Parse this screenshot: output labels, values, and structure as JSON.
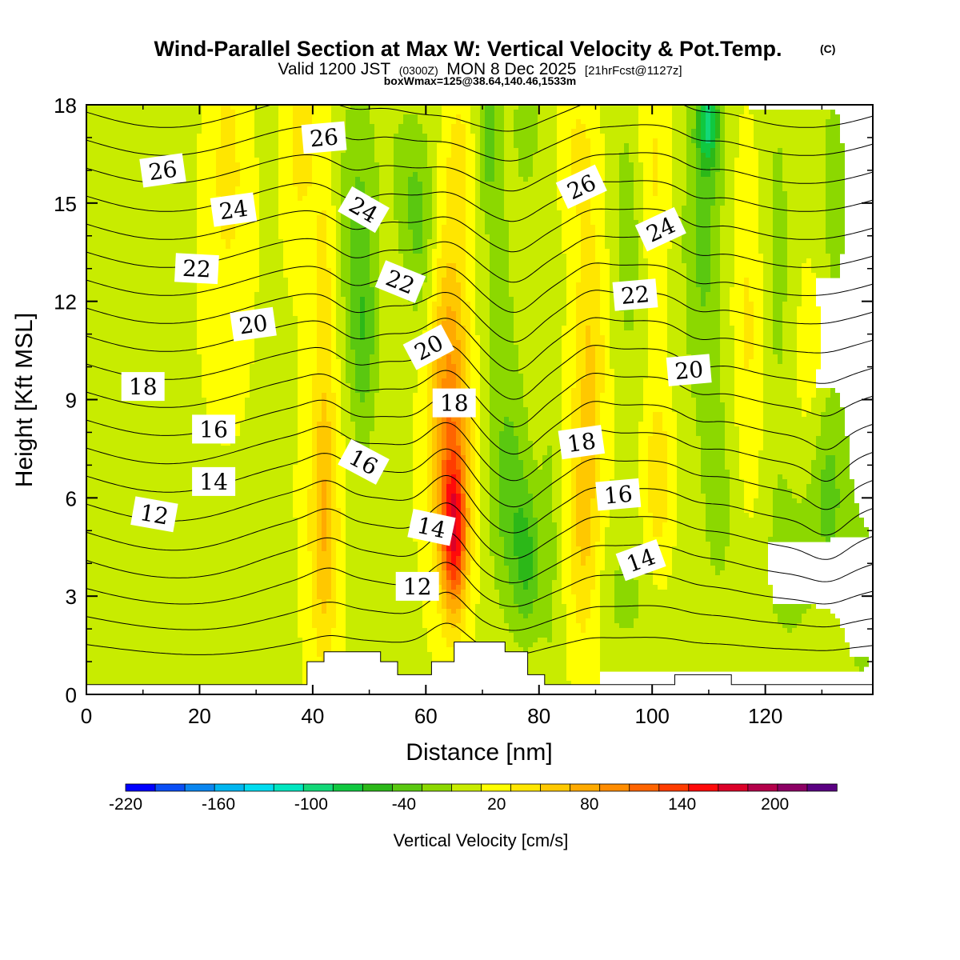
{
  "chart_data": {
    "type": "heatmap",
    "title": "Wind-Parallel Section at Max W: Vertical Velocity & Pot.Temp.",
    "title_mark": "(C)",
    "subtitle": {
      "valid": "Valid 1200 JST",
      "utc": "(0300Z)",
      "date": "MON 8 Dec 2025",
      "forecast": "[21hrFcst@1127z]"
    },
    "info_line": "boxWmax=125@38.64,140.46,1533m",
    "xlabel": "Distance [nm]",
    "ylabel": "Height [Kft MSL]",
    "xlim": [
      0,
      139
    ],
    "ylim": [
      0,
      18
    ],
    "xticks": [
      "0",
      "20",
      "40",
      "60",
      "80",
      "100",
      "120"
    ],
    "yticks": [
      "0",
      "3",
      "6",
      "9",
      "12",
      "15",
      "18"
    ],
    "colorbar": {
      "label": "Vertical Velocity [cm/s]",
      "levels": [
        -220,
        -200,
        -180,
        -160,
        -140,
        -120,
        -100,
        -80,
        -60,
        -40,
        -20,
        0,
        20,
        40,
        60,
        80,
        100,
        120,
        140,
        160,
        180,
        200,
        220,
        240
      ],
      "tick_labels": [
        "-220",
        "-160",
        "-100",
        "-40",
        "20",
        "80",
        "140",
        "200"
      ],
      "colors": [
        "#0000ff",
        "#0a4ef5",
        "#0a86f0",
        "#00b6f0",
        "#00dcf0",
        "#00e6c0",
        "#12d878",
        "#10c840",
        "#2cb818",
        "#5ac810",
        "#8cd800",
        "#c8ec00",
        "#ffff00",
        "#ffe600",
        "#ffc800",
        "#ffaa00",
        "#ff8c00",
        "#ff6400",
        "#ff3c00",
        "#ff0a0a",
        "#dc0028",
        "#b4004a",
        "#8c0064",
        "#5a0082"
      ]
    },
    "w_features": [
      {
        "x": 0,
        "z": 9,
        "rx": 200,
        "rz": 30,
        "w": 20
      },
      {
        "x": 38,
        "z": 17.5,
        "rx": 2.5,
        "rz": 3,
        "w": 40
      },
      {
        "x": 42,
        "z": 5,
        "rx": 2.5,
        "rz": 4,
        "w": 60
      },
      {
        "x": 42,
        "z": 12,
        "rx": 2,
        "rz": 5,
        "w": 30
      },
      {
        "x": 25,
        "z": 16,
        "rx": 3,
        "rz": 4,
        "w": 30
      },
      {
        "x": 48,
        "z": 14.5,
        "rx": 3.5,
        "rz": 4.5,
        "w": -40
      },
      {
        "x": 49,
        "z": 10.5,
        "rx": 2.5,
        "rz": 3,
        "w": -40
      },
      {
        "x": 50,
        "z": 4,
        "rx": 3,
        "rz": 3,
        "w": -10
      },
      {
        "x": 56,
        "z": 16,
        "rx": 3.5,
        "rz": 2.5,
        "w": -20
      },
      {
        "x": 59,
        "z": 14,
        "rx": 3,
        "rz": 3,
        "w": -40
      },
      {
        "x": 65,
        "z": 4.8,
        "rx": 2.2,
        "rz": 2.3,
        "w": 120
      },
      {
        "x": 64.5,
        "z": 7,
        "rx": 3.5,
        "rz": 4,
        "w": 70
      },
      {
        "x": 64,
        "z": 11,
        "rx": 3.5,
        "rz": 4,
        "w": 50
      },
      {
        "x": 66,
        "z": 16.5,
        "rx": 2.5,
        "rz": 2,
        "w": 30
      },
      {
        "x": 75,
        "z": 6,
        "rx": 3.5,
        "rz": 3.5,
        "w": -40
      },
      {
        "x": 78,
        "z": 4,
        "rx": 2.5,
        "rz": 2.2,
        "w": -50
      },
      {
        "x": 73,
        "z": 12,
        "rx": 4,
        "rz": 7,
        "w": -20
      },
      {
        "x": 71,
        "z": 17,
        "rx": 2,
        "rz": 2,
        "w": -40
      },
      {
        "x": 78,
        "z": 17.5,
        "rx": 2,
        "rz": 2,
        "w": -30
      },
      {
        "x": 82,
        "z": 5,
        "rx": 2,
        "rz": 6,
        "w": -20
      },
      {
        "x": 88,
        "z": 5,
        "rx": 3,
        "rz": 4,
        "w": 50
      },
      {
        "x": 89,
        "z": 11,
        "rx": 3,
        "rz": 4,
        "w": 40
      },
      {
        "x": 87,
        "z": 16.5,
        "rx": 3,
        "rz": 2,
        "w": 30
      },
      {
        "x": 101,
        "z": 6.5,
        "rx": 2.5,
        "rz": 3,
        "w": 40
      },
      {
        "x": 100,
        "z": 16,
        "rx": 3,
        "rz": 4,
        "w": 30
      },
      {
        "x": 96,
        "z": 14,
        "rx": 3,
        "rz": 4,
        "w": -30
      },
      {
        "x": 95,
        "z": 3,
        "rx": 6,
        "rz": 2,
        "w": -20
      },
      {
        "x": 109,
        "z": 14,
        "rx": 3.5,
        "rz": 5,
        "w": -40
      },
      {
        "x": 110,
        "z": 17.5,
        "rx": 2,
        "rz": 1.5,
        "w": -80
      },
      {
        "x": 112,
        "z": 6,
        "rx": 4,
        "rz": 4,
        "w": -20
      },
      {
        "x": 117,
        "z": 11,
        "rx": 3,
        "rz": 6,
        "w": 30
      },
      {
        "x": 122,
        "z": 13,
        "rx": 3,
        "rz": 6,
        "w": -20
      },
      {
        "x": 124,
        "z": 4,
        "rx": 5,
        "rz": 3,
        "w": -20
      },
      {
        "x": 128,
        "z": 10,
        "rx": 3,
        "rz": 4,
        "w": 20
      },
      {
        "x": 131,
        "z": 6.3,
        "rx": 3.5,
        "rz": 3,
        "w": -40
      },
      {
        "x": 132,
        "z": 15,
        "rx": 3,
        "rz": 4,
        "w": -20
      },
      {
        "x": 137,
        "z": 3,
        "rx": 4,
        "rz": 3,
        "w": -20
      },
      {
        "x": 2,
        "z": 1.5,
        "rx": 4,
        "rz": 2,
        "w": -5
      }
    ],
    "terrain": [
      {
        "x": 0,
        "z": 0.3
      },
      {
        "x": 39,
        "z": 0.3
      },
      {
        "x": 39,
        "z": 1.0
      },
      {
        "x": 42,
        "z": 1.0
      },
      {
        "x": 42,
        "z": 1.3
      },
      {
        "x": 52,
        "z": 1.3
      },
      {
        "x": 52,
        "z": 1.0
      },
      {
        "x": 55,
        "z": 1.0
      },
      {
        "x": 55,
        "z": 0.6
      },
      {
        "x": 61,
        "z": 0.6
      },
      {
        "x": 61,
        "z": 1.0
      },
      {
        "x": 65,
        "z": 1.0
      },
      {
        "x": 65,
        "z": 1.6
      },
      {
        "x": 74,
        "z": 1.6
      },
      {
        "x": 74,
        "z": 1.3
      },
      {
        "x": 78,
        "z": 1.3
      },
      {
        "x": 78,
        "z": 0.6
      },
      {
        "x": 81,
        "z": 0.6
      },
      {
        "x": 81,
        "z": 0.3
      },
      {
        "x": 104,
        "z": 0.3
      },
      {
        "x": 104,
        "z": 0.6
      },
      {
        "x": 114,
        "z": 0.6
      },
      {
        "x": 114,
        "z": 0.3
      },
      {
        "x": 139,
        "z": 0.3
      }
    ],
    "theta_bumps": [
      {
        "x": 64,
        "z": 5,
        "sx": 5,
        "sz": 5,
        "d": -1.3
      },
      {
        "x": 64,
        "z": 12,
        "sx": 5,
        "sz": 5,
        "d": -0.8
      },
      {
        "x": 47,
        "z": 13,
        "sx": 5,
        "sz": 6,
        "d": 0.7
      },
      {
        "x": 76,
        "z": 9,
        "sx": 5,
        "sz": 7,
        "d": 0.8
      },
      {
        "x": 43,
        "z": 7,
        "sx": 4,
        "sz": 5,
        "d": -0.4
      },
      {
        "x": 89,
        "z": 10,
        "sx": 4,
        "sz": 7,
        "d": -0.4
      },
      {
        "x": 108,
        "z": 12,
        "sx": 4,
        "sz": 8,
        "d": 0.4
      },
      {
        "x": 131,
        "z": 6,
        "sx": 4,
        "sz": 3,
        "d": 0.7
      },
      {
        "x": 25,
        "z": 2,
        "sx": 15,
        "sz": 3,
        "d": 0.3
      }
    ],
    "contour_labels": [
      {
        "text": "26",
        "x": 13.5,
        "z": 16.0,
        "angle": -8
      },
      {
        "text": "26",
        "x": 42.0,
        "z": 17.0,
        "angle": -5
      },
      {
        "text": "26",
        "x": 87.5,
        "z": 15.5,
        "angle": -25
      },
      {
        "text": "24",
        "x": 26.0,
        "z": 14.8,
        "angle": -8
      },
      {
        "text": "24",
        "x": 49.0,
        "z": 14.8,
        "angle": 30
      },
      {
        "text": "24",
        "x": 101.5,
        "z": 14.2,
        "angle": -25
      },
      {
        "text": "22",
        "x": 19.5,
        "z": 13.0,
        "angle": 3
      },
      {
        "text": "22",
        "x": 55.5,
        "z": 12.6,
        "angle": 22
      },
      {
        "text": "22",
        "x": 97.0,
        "z": 12.2,
        "angle": -5
      },
      {
        "text": "20",
        "x": 29.5,
        "z": 11.3,
        "angle": -8
      },
      {
        "text": "20",
        "x": 60.5,
        "z": 10.6,
        "angle": -28
      },
      {
        "text": "20",
        "x": 106.5,
        "z": 9.9,
        "angle": -5
      },
      {
        "text": "18",
        "x": 10.0,
        "z": 9.4,
        "angle": 0
      },
      {
        "text": "18",
        "x": 65.0,
        "z": 8.9,
        "angle": 0
      },
      {
        "text": "18",
        "x": 87.5,
        "z": 7.7,
        "angle": -8
      },
      {
        "text": "16",
        "x": 22.5,
        "z": 8.1,
        "angle": 0
      },
      {
        "text": "16",
        "x": 49.0,
        "z": 7.1,
        "angle": 28
      },
      {
        "text": "16",
        "x": 94.0,
        "z": 6.1,
        "angle": -5
      },
      {
        "text": "14",
        "x": 22.5,
        "z": 6.5,
        "angle": 0
      },
      {
        "text": "14",
        "x": 61.0,
        "z": 5.1,
        "angle": 12
      },
      {
        "text": "14",
        "x": 98.0,
        "z": 4.1,
        "angle": -20
      },
      {
        "text": "12",
        "x": 12.0,
        "z": 5.5,
        "angle": 10
      },
      {
        "text": "12",
        "x": 58.5,
        "z": 3.3,
        "angle": 0
      }
    ]
  }
}
